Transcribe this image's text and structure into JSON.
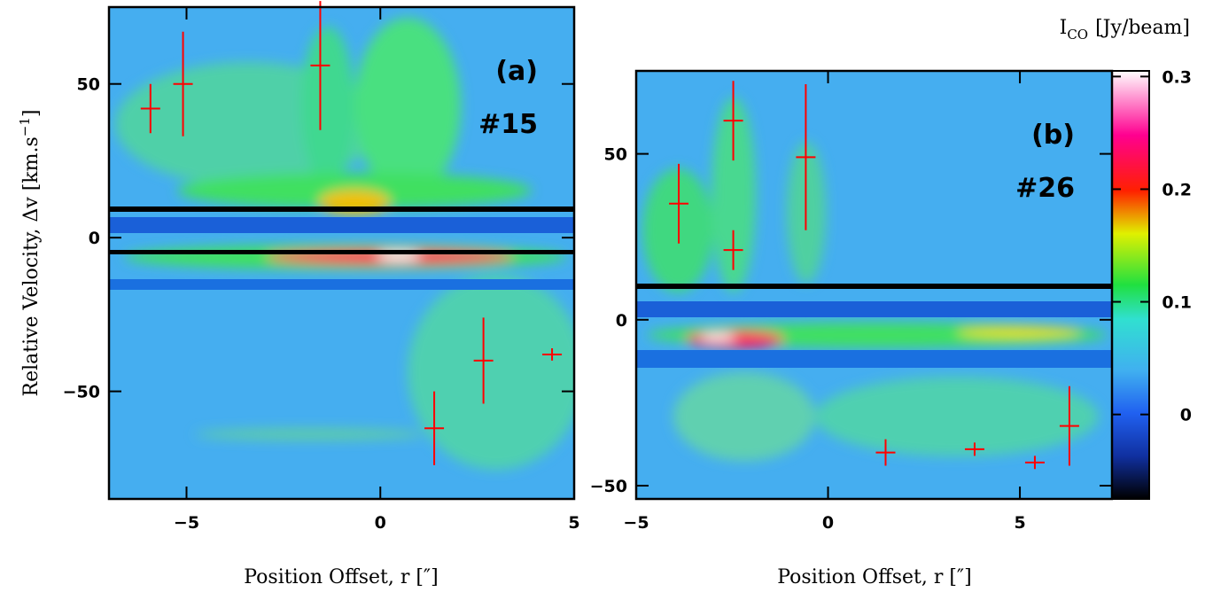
{
  "colorbar": {
    "label": "I",
    "label_sub": "CO",
    "label_unit": "[Jy/beam]",
    "lim": [
      -0.075,
      0.305
    ],
    "ticks": [
      0.3,
      0.2,
      0.1,
      0
    ]
  },
  "chart_data": [
    {
      "type": "scatter",
      "panel_label": "(a)",
      "id_label": "#15",
      "x_label": "Position Offset, r [″]",
      "y_label": "Relative Velocity, Δv [km.s",
      "y_label_sup": "−1",
      "y_label_end": "]",
      "xlim": [
        -7,
        5
      ],
      "ylim": [
        -85,
        75
      ],
      "xticks": [
        {
          "value": -5,
          "label": "−5"
        },
        0,
        5
      ],
      "yticks": [
        {
          "value": -50,
          "label": "−50"
        },
        0,
        50
      ],
      "series": [
        {
          "color": "#ff0000",
          "x": [
            -5.93,
            -5.09,
            -1.55,
            1.39,
            2.66,
            4.43
          ],
          "values": [
            42,
            50,
            56,
            -62,
            -40,
            -38
          ],
          "errors": [
            8,
            17,
            21,
            12,
            14,
            2
          ]
        }
      ]
    },
    {
      "type": "scatter",
      "panel_label": "(b)",
      "id_label": "#26",
      "x_label": "Position Offset, r [″]",
      "xlim": [
        -5,
        7.4
      ],
      "ylim": [
        -54,
        75
      ],
      "xticks": [
        {
          "value": -5,
          "label": "−5"
        },
        0,
        5
      ],
      "yticks": [
        {
          "value": -50,
          "label": "−50"
        },
        0,
        50
      ],
      "series": [
        {
          "color": "#ff0000",
          "x": [
            -3.89,
            -2.47,
            -2.47,
            -0.58,
            1.5,
            3.82,
            5.39,
            6.29
          ],
          "values": [
            35,
            60,
            21,
            49,
            -40,
            -39,
            -43,
            -32
          ],
          "errors": [
            12,
            12,
            6,
            22,
            4,
            2,
            2,
            12
          ]
        }
      ]
    }
  ]
}
